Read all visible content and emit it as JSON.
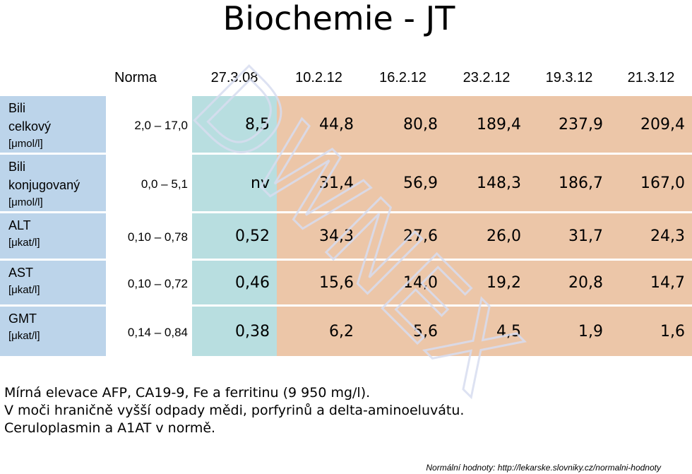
{
  "title": "Biochemie - JT",
  "table": {
    "header": {
      "norma": "Norma",
      "dates": [
        "27.3.08",
        "10.2.12",
        "16.2.12",
        "23.2.12",
        "19.3.12",
        "21.3.12"
      ]
    },
    "rows": [
      {
        "name": "Bili celkový",
        "name_lines": [
          "Bili",
          "celkový"
        ],
        "unit": "[μmol/l]",
        "norm": "2,0 – 17,0",
        "values": [
          "8,5",
          "44,8",
          "80,8",
          "189,4",
          "237,9",
          "209,4"
        ]
      },
      {
        "name": "Bili konjugovaný",
        "name_lines": [
          "Bili",
          "konjugovaný"
        ],
        "unit": "[μmol/l]",
        "norm": "0,0 – 5,1",
        "values": [
          "nv",
          "31,4",
          "56,9",
          "148,3",
          "186,7",
          "167,0"
        ]
      },
      {
        "name": "ALT",
        "name_lines": [
          "ALT"
        ],
        "unit": "[μkat/l]",
        "norm": "0,10 – 0,78",
        "values": [
          "0,52",
          "34,3",
          "27,6",
          "26,0",
          "31,7",
          "24,3"
        ]
      },
      {
        "name": "AST",
        "name_lines": [
          "AST"
        ],
        "unit": "[μkat/l]",
        "norm": "0,10 – 0,72",
        "values": [
          "0,46",
          "15,6",
          "14,0",
          "19,2",
          "20,8",
          "14,7"
        ]
      },
      {
        "name": "GMT",
        "name_lines": [
          "GMT"
        ],
        "unit": "[μkat/l]",
        "norm": "0,14 – 0,84",
        "values": [
          "0,38",
          "6,2",
          "5,6",
          "4,5",
          "1,9",
          "1,6"
        ]
      }
    ]
  },
  "notes": [
    "Mírná elevace AFP, CA19-9, Fe  a ferritinu (9 950 mg/l).",
    "V moči hraničně vyšší odpady mědi, porfyrinů a delta-aminoeluvátu.",
    "Ceruloplasmin a A1AT v normě."
  ],
  "footer": "Normální hodnoty: http://lekarske.slovniky.cz/normalni-hodnoty",
  "watermark": "DWNEX",
  "colors": {
    "label_bg": "#bcd4ea",
    "baseline_bg": "#b8dee0",
    "followup_bg": "#ecc6a8"
  }
}
